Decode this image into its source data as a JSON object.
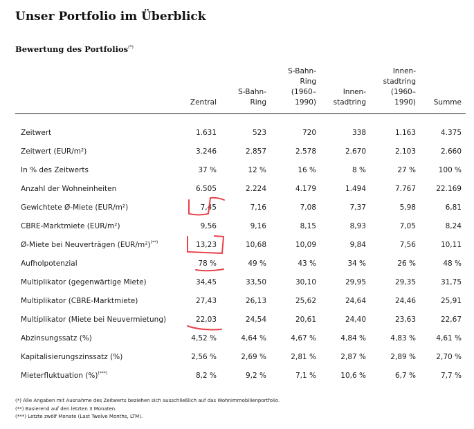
{
  "title": "Unser Portfolio im Überblick",
  "subtitle": {
    "text": "Bewertung des Portfolios",
    "note": "(*)"
  },
  "columns": [
    [
      "Zentral"
    ],
    [
      "S-Bahn-",
      "Ring"
    ],
    [
      "S-Bahn-",
      "Ring",
      "(1960–",
      "1990)"
    ],
    [
      "Innen-",
      "stadtring"
    ],
    [
      "Innen-",
      "stadtring",
      "(1960–",
      "1990)"
    ],
    [
      "Summe"
    ]
  ],
  "rows": [
    {
      "label": "Zeitwert",
      "note": "",
      "values": [
        "1.631",
        "523",
        "720",
        "338",
        "1.163",
        "4.375"
      ]
    },
    {
      "label": "Zeitwert (EUR/m²)",
      "note": "",
      "values": [
        "3.246",
        "2.857",
        "2.578",
        "2.670",
        "2.103",
        "2.660"
      ]
    },
    {
      "label": "In % des Zeitwerts",
      "note": "",
      "values": [
        "37 %",
        "12 %",
        "16 %",
        "8 %",
        "27 %",
        "100 %"
      ]
    },
    {
      "label": "Anzahl der Wohneinheiten",
      "note": "",
      "values": [
        "6.505",
        "2.224",
        "4.179",
        "1.494",
        "7.767",
        "22.169"
      ]
    },
    {
      "label": "Gewichtete Ø-Miete (EUR/m²)",
      "note": "",
      "values": [
        "7,45",
        "7,16",
        "7,08",
        "7,37",
        "5,98",
        "6,81"
      ]
    },
    {
      "label": "CBRE-Marktmiete (EUR/m²)",
      "note": "",
      "values": [
        "9,56",
        "9,16",
        "8,15",
        "8,93",
        "7,05",
        "8,24"
      ]
    },
    {
      "label": "Ø-Miete bei Neuverträgen (EUR/m²)",
      "note": "(**)",
      "values": [
        "13,23",
        "10,68",
        "10,09",
        "9,84",
        "7,56",
        "10,11"
      ]
    },
    {
      "label": "Aufholpotenzial",
      "note": "",
      "values": [
        "78 %",
        "49 %",
        "43 %",
        "34 %",
        "26 %",
        "48 %"
      ]
    },
    {
      "label": "Multiplikator (gegenwärtige Miete)",
      "note": "",
      "values": [
        "34,45",
        "33,50",
        "30,10",
        "29,95",
        "29,35",
        "31,75"
      ]
    },
    {
      "label": "Multiplikator (CBRE-Marktmiete)",
      "note": "",
      "values": [
        "27,43",
        "26,13",
        "25,62",
        "24,64",
        "24,46",
        "25,91"
      ]
    },
    {
      "label": "Multiplikator (Miete bei Neuvermietung)",
      "note": "",
      "values": [
        "22,03",
        "24,54",
        "20,61",
        "24,40",
        "23,63",
        "22,67"
      ]
    },
    {
      "label": "Abzinsungssatz (%)",
      "note": "",
      "values": [
        "4,52 %",
        "4,64 %",
        "4,67 %",
        "4,84 %",
        "4,83 %",
        "4,61 %"
      ]
    },
    {
      "label": "Kapitalisierungszinssatz (%)",
      "note": "",
      "values": [
        "2,56 %",
        "2,69 %",
        "2,81 %",
        "2,87 %",
        "2,89 %",
        "2,70 %"
      ]
    },
    {
      "label": "Mieterfluktuation (%)",
      "note": "(***)",
      "values": [
        "8,2 %",
        "9,2 %",
        "7,1 %",
        "10,6 %",
        "6,7 %",
        "7,7 %"
      ]
    }
  ],
  "footnotes": [
    "(*) Alle Angaben mit Ausnahme des Zeitwerts beziehen sich ausschließlich auf das Wohnimmobilienportfolio.",
    "(**) Basierend auf den letzten 3 Monaten.",
    "(***) Letzte zwölf Monate (Last Twelve Months, LTM)."
  ],
  "annotation_color": "#e8414a"
}
